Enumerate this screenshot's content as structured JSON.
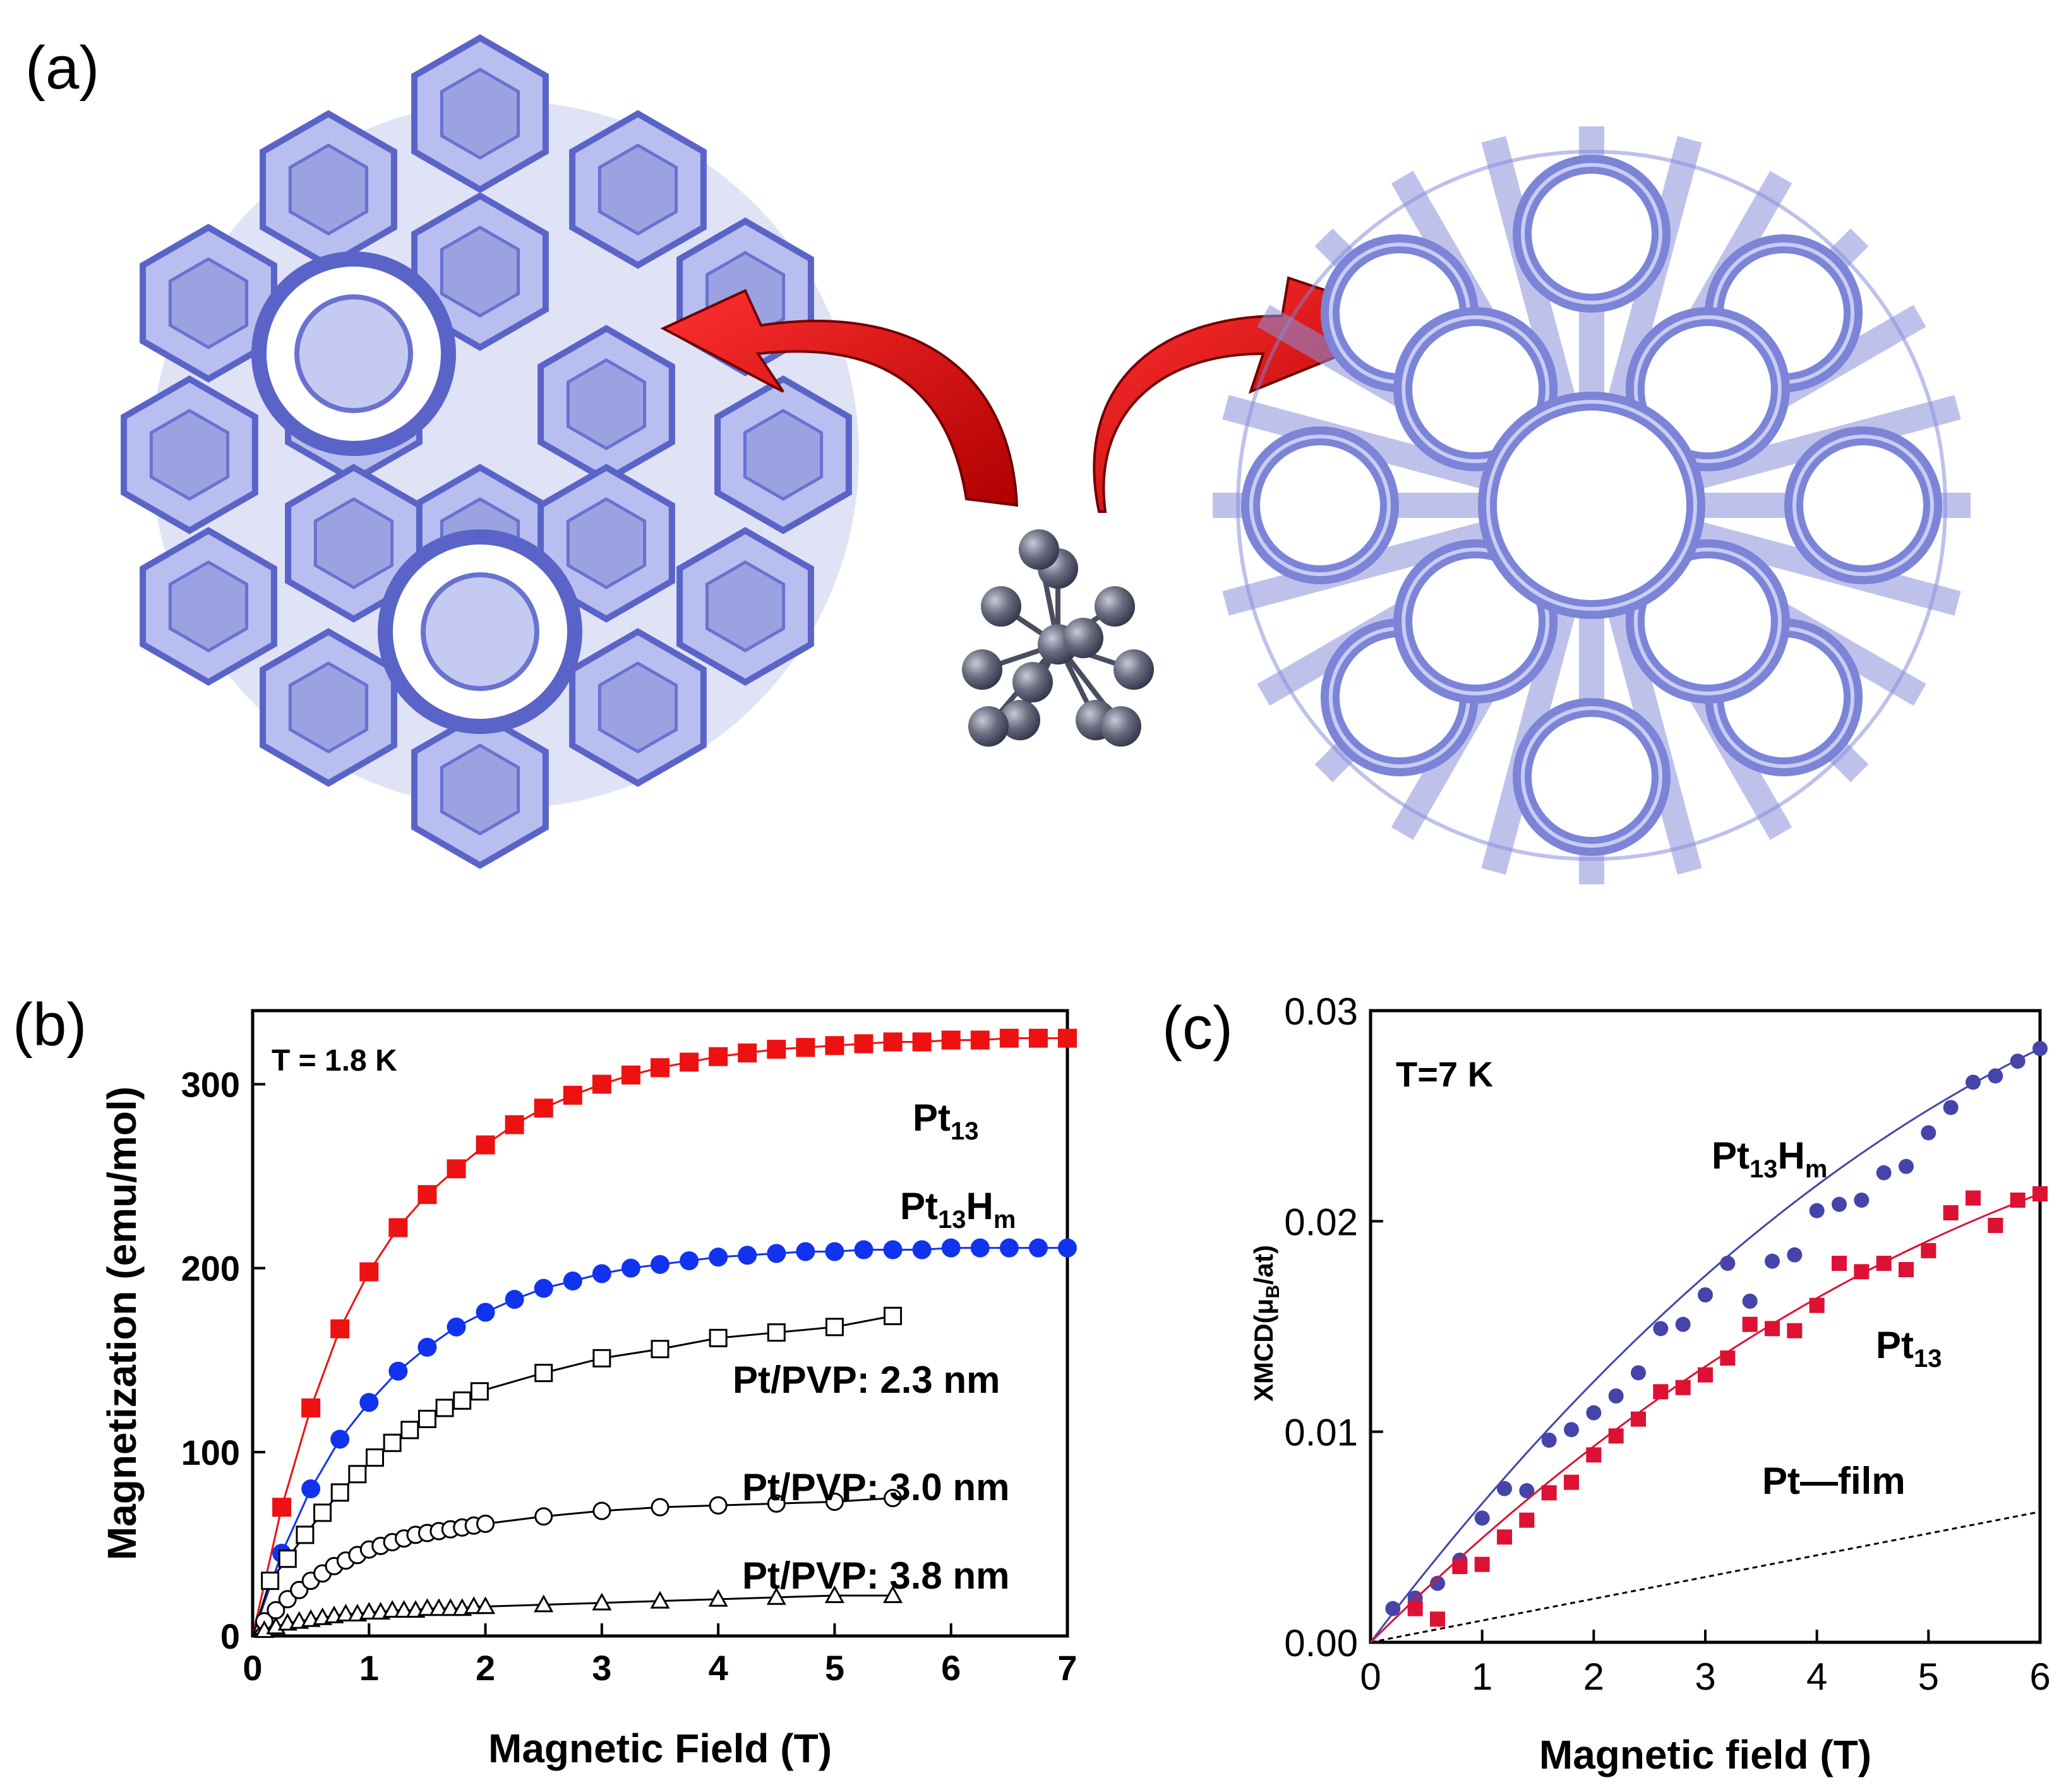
{
  "panel_a": {
    "label": "(a)"
  },
  "chart_data": [
    {
      "type": "scatter",
      "panel": "(b)",
      "title": "",
      "xlabel": "Magnetic Field (T)",
      "ylabel": "Magnetization (emu/mol)",
      "xlim": [
        0,
        7
      ],
      "ylim": [
        0,
        340
      ],
      "xticks": [
        0,
        1,
        2,
        3,
        4,
        5,
        6,
        7
      ],
      "yticks": [
        0,
        100,
        200,
        300
      ],
      "annotation": "T = 1.8 K",
      "grid": false,
      "series": [
        {
          "name": "Pt13",
          "label_main": "Pt",
          "label_sub": "13",
          "label_sub2": "",
          "label_mid": "",
          "marker": "filled-square",
          "color": "#ee1111",
          "x": [
            0.25,
            0.5,
            0.75,
            1.0,
            1.25,
            1.5,
            1.75,
            2.0,
            2.25,
            2.5,
            2.75,
            3.0,
            3.25,
            3.5,
            3.75,
            4.0,
            4.25,
            4.5,
            4.75,
            5.0,
            5.25,
            5.5,
            5.75,
            6.0,
            6.25,
            6.5,
            6.75,
            7.0
          ],
          "y": [
            70,
            124,
            167,
            198,
            222,
            240,
            254,
            267,
            278,
            287,
            294,
            300,
            305,
            309,
            312,
            315,
            317,
            319,
            320,
            321,
            322,
            323,
            323,
            324,
            324,
            325,
            325,
            325
          ]
        },
        {
          "name": "Pt13Hm",
          "label_main": "Pt",
          "label_sub": "13",
          "label_mid": "H",
          "label_sub2": "m",
          "marker": "filled-circle",
          "color": "#1133ee",
          "x": [
            0.25,
            0.5,
            0.75,
            1.0,
            1.25,
            1.5,
            1.75,
            2.0,
            2.25,
            2.5,
            2.75,
            3.0,
            3.25,
            3.5,
            3.75,
            4.0,
            4.25,
            4.5,
            4.75,
            5.0,
            5.25,
            5.5,
            5.75,
            6.0,
            6.25,
            6.5,
            6.75,
            7.0
          ],
          "y": [
            45,
            80,
            107,
            127,
            144,
            157,
            168,
            176,
            183,
            189,
            193,
            197,
            200,
            202,
            204,
            206,
            207,
            208,
            209,
            209,
            210,
            210,
            210,
            211,
            211,
            211,
            211,
            211
          ]
        },
        {
          "name": "Pt/PVP: 2.3 nm",
          "marker": "open-square",
          "color": "#000000",
          "x": [
            0.15,
            0.3,
            0.45,
            0.6,
            0.75,
            0.9,
            1.05,
            1.2,
            1.35,
            1.5,
            1.65,
            1.8,
            1.95,
            2.5,
            3.0,
            3.5,
            4.0,
            4.5,
            5.0,
            5.5
          ],
          "y": [
            30,
            42,
            55,
            67,
            78,
            88,
            97,
            105,
            112,
            118,
            124,
            128,
            133,
            143,
            151,
            156,
            162,
            165,
            168,
            174
          ]
        },
        {
          "name": "Pt/PVP: 3.0 nm",
          "marker": "open-circle",
          "color": "#000000",
          "x": [
            0.1,
            0.2,
            0.3,
            0.4,
            0.5,
            0.6,
            0.7,
            0.8,
            0.9,
            1.0,
            1.1,
            1.2,
            1.3,
            1.4,
            1.5,
            1.6,
            1.7,
            1.8,
            1.9,
            2.0,
            2.5,
            3.0,
            3.5,
            4.0,
            4.5,
            5.0,
            5.5
          ],
          "y": [
            8,
            14,
            20,
            25,
            30,
            34,
            38,
            41,
            44,
            47,
            49,
            51,
            53,
            55,
            56,
            57,
            58,
            59,
            60,
            61,
            65,
            68,
            70,
            71,
            72,
            73,
            75
          ]
        },
        {
          "name": "Pt/PVP: 3.8 nm",
          "marker": "open-triangle",
          "color": "#000000",
          "x": [
            0.1,
            0.2,
            0.3,
            0.4,
            0.5,
            0.6,
            0.7,
            0.8,
            0.9,
            1.0,
            1.1,
            1.2,
            1.3,
            1.4,
            1.5,
            1.6,
            1.7,
            1.8,
            1.9,
            2.0,
            2.5,
            3.0,
            3.5,
            4.0,
            4.5,
            5.0,
            5.5
          ],
          "y": [
            3,
            5,
            7,
            8,
            9,
            10,
            11,
            12,
            12,
            13,
            13,
            14,
            14,
            14,
            15,
            15,
            15,
            15,
            16,
            16,
            17,
            18,
            19,
            20,
            21,
            22,
            22
          ]
        }
      ]
    },
    {
      "type": "scatter",
      "panel": "(c)",
      "title": "",
      "xlabel": "Magnetic field (T)",
      "ylabel_main": "XMCD(",
      "ylabel_mu": "μ",
      "ylabel_sub": "B",
      "ylabel_end": "/at)",
      "xlim": [
        0,
        6
      ],
      "ylim": [
        0,
        0.03
      ],
      "xticks": [
        0,
        1,
        2,
        3,
        4,
        5,
        6
      ],
      "yticks": [
        "0.00",
        "0.01",
        "0.02",
        "0.03"
      ],
      "annotation": "T=7 K",
      "grid": false,
      "film_label": "Pt—film",
      "film_line": {
        "x": [
          0,
          6
        ],
        "y": [
          0,
          0.0062
        ]
      },
      "series": [
        {
          "name": "Pt13Hm",
          "label_main": "Pt",
          "label_sub": "13",
          "label_mid": "H",
          "label_sub2": "m",
          "marker": "filled-circle",
          "color": "#4444aa",
          "x": [
            0.2,
            0.4,
            0.6,
            0.8,
            1.0,
            1.2,
            1.4,
            1.6,
            1.8,
            2.0,
            2.2,
            2.4,
            2.6,
            2.8,
            3.0,
            3.2,
            3.4,
            3.6,
            3.8,
            4.0,
            4.2,
            4.4,
            4.6,
            4.8,
            5.0,
            5.2,
            5.4,
            5.6,
            5.8,
            6.0
          ],
          "y": [
            0.0016,
            0.0021,
            0.0028,
            0.0039,
            0.0059,
            0.0073,
            0.0072,
            0.0096,
            0.0101,
            0.0109,
            0.0117,
            0.0128,
            0.0149,
            0.0151,
            0.0165,
            0.018,
            0.0162,
            0.0181,
            0.0184,
            0.0205,
            0.0208,
            0.021,
            0.0223,
            0.0226,
            0.0242,
            0.0254,
            0.0266,
            0.0269,
            0.0276,
            0.0282
          ]
        },
        {
          "name": "Pt13",
          "label_main": "Pt",
          "label_sub": "13",
          "label_mid": "",
          "label_sub2": "",
          "marker": "filled-square",
          "color": "#dd1133",
          "x": [
            0.4,
            0.6,
            0.8,
            1.0,
            1.2,
            1.4,
            1.6,
            1.8,
            2.0,
            2.2,
            2.4,
            2.6,
            2.8,
            3.0,
            3.2,
            3.4,
            3.6,
            3.8,
            4.0,
            4.2,
            4.4,
            4.6,
            4.8,
            5.0,
            5.2,
            5.4,
            5.6,
            5.8,
            6.0
          ],
          "y": [
            0.0016,
            0.0011,
            0.0036,
            0.0037,
            0.005,
            0.0058,
            0.0071,
            0.0076,
            0.0089,
            0.0098,
            0.0106,
            0.0119,
            0.0121,
            0.0127,
            0.0135,
            0.0151,
            0.0149,
            0.0148,
            0.016,
            0.018,
            0.0176,
            0.018,
            0.0177,
            0.0186,
            0.0204,
            0.0211,
            0.0198,
            0.021,
            0.0213
          ]
        }
      ]
    }
  ]
}
